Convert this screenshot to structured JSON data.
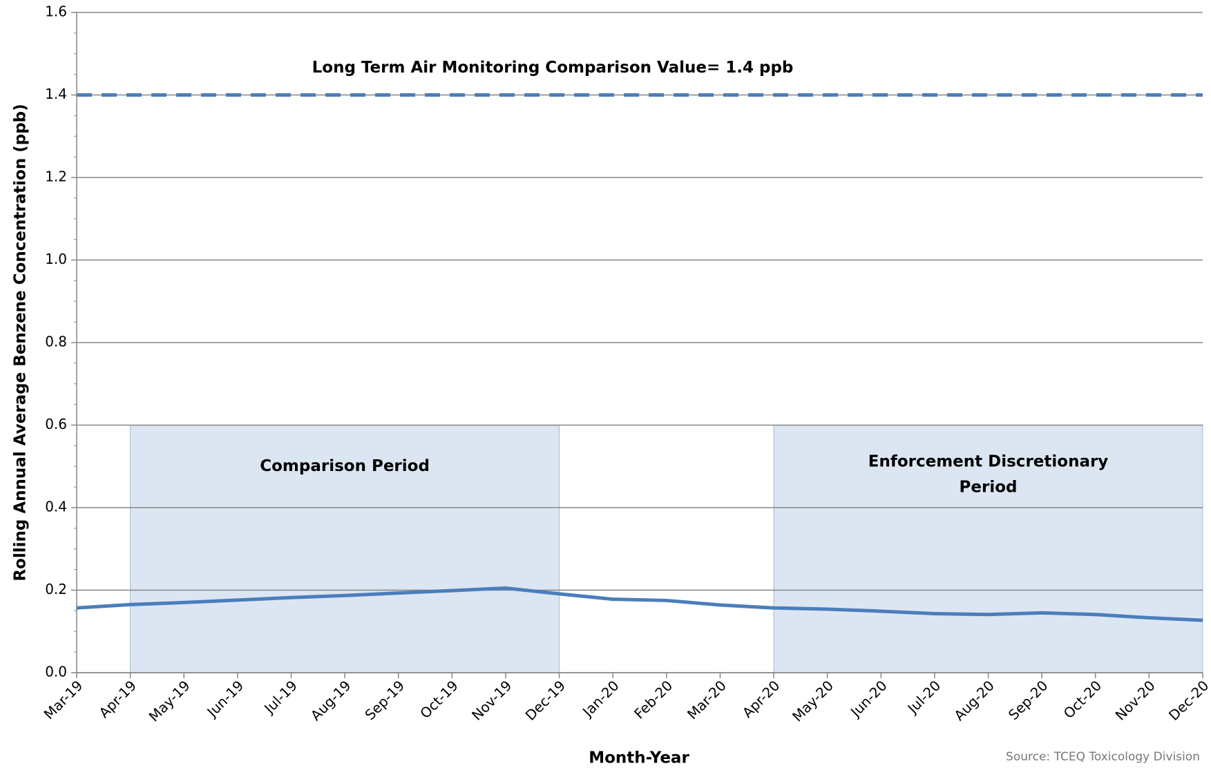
{
  "chart_data": {
    "type": "line",
    "x_label": "Month-Year",
    "y_label": "Rolling Annual Average Benzene Concentration (ppb)",
    "source": "Source: TCEQ Toxicology Division",
    "categories": [
      "Mar-19",
      "Apr-19",
      "May-19",
      "Jun-19",
      "Jul-19",
      "Aug-19",
      "Sep-19",
      "Oct-19",
      "Nov-19",
      "Dec-19",
      "Jan-20",
      "Feb-20",
      "Mar-20",
      "Apr-20",
      "May-20",
      "Jun-20",
      "Jul-20",
      "Aug-20",
      "Sep-20",
      "Oct-20",
      "Nov-20",
      "Dec-20"
    ],
    "series": [
      {
        "color": "#4a7ebb",
        "values": [
          0.157,
          0.165,
          0.17,
          0.176,
          0.182,
          0.187,
          0.193,
          0.199,
          0.205,
          0.191,
          0.178,
          0.175,
          0.164,
          0.157,
          0.154,
          0.149,
          0.143,
          0.141,
          0.145,
          0.141,
          0.133,
          0.127
        ]
      }
    ],
    "ylim": [
      0,
      1.6
    ],
    "yticks": [
      {
        "value": 0,
        "label": "0.0"
      },
      0.2,
      0.4,
      0.6,
      0.8,
      {
        "value": 1,
        "label": "1.0"
      },
      1.2,
      1.4,
      1.6
    ],
    "grid": true,
    "reference_line": {
      "value": 1.4,
      "label": "Long Term Air Monitoring Comparison  Value= 1.4 ppb",
      "color": "#4a7ebb"
    },
    "shaded_periods": [
      {
        "lines": [
          "Comparison  Period"
        ],
        "start": "Apr-19",
        "end": "Dec-19",
        "top": 0.6,
        "color": "#dce6f2"
      },
      {
        "lines": [
          "Enforcement Discretionary",
          "Period"
        ],
        "start": "Apr-20",
        "end": "Dec-20",
        "top": 0.6,
        "color": "#dce6f2"
      }
    ]
  }
}
